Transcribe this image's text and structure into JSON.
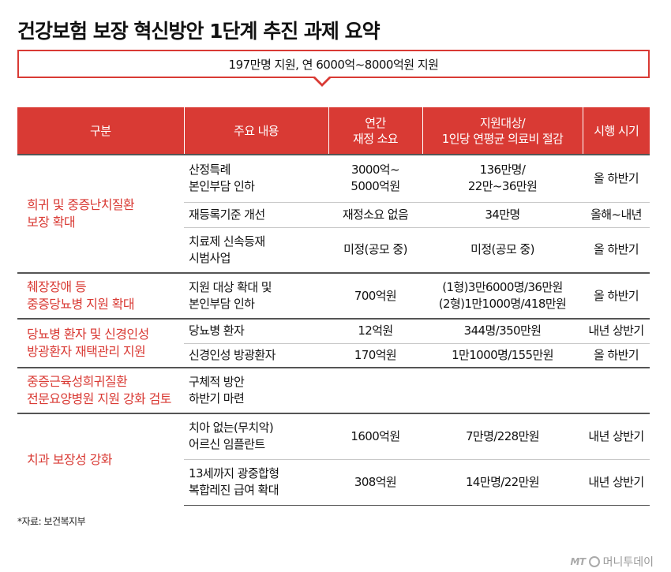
{
  "title": "건강보험 보장 혁신방안 1단계 추진 과제 요약",
  "callout": "197만명 지원, 연 6000억~8000억원 지원",
  "headers": {
    "category": "구분",
    "content": "주요 내용",
    "cost_line1": "연간",
    "cost_line2": "재정 소요",
    "target_line1": "지원대상/",
    "target_line2": "1인당 연평균 의료비 절감",
    "timing": "시행 시기"
  },
  "categories": {
    "rare_disease_line1": "희귀 및 중증난치질환",
    "rare_disease_line2": "보장 확대",
    "disability_line1": "췌장장애 등",
    "disability_line2": "중증당뇨병 지원 확대",
    "diabetes_home_line1": "당뇨병 환자 및 신경인성",
    "diabetes_home_line2": "방광환자 재택관리 지원",
    "neuromuscular_line1": "중증근육성희귀질환",
    "neuromuscular_line2": "전문요양병원 지원 강화 검토",
    "dental": "치과 보장성 강화"
  },
  "rows": [
    {
      "content_line1": "산정특례",
      "content_line2": "본인부담 인하",
      "cost_line1": "3000억~",
      "cost_line2": "5000억원",
      "target_line1": "136만명/",
      "target_line2": "22만~36만원",
      "timing": "올 하반기"
    },
    {
      "content_line1": "재등록기준 개선",
      "cost_line1": "재정소요 없음",
      "target_line1": "34만명",
      "timing": "올해~내년"
    },
    {
      "content_line1": "치료제 신속등재",
      "content_line2": "시범사업",
      "cost_line1": "미정(공모 중)",
      "target_line1": "미정(공모 중)",
      "timing": "올 하반기"
    },
    {
      "content_line1": "지원 대상 확대 및",
      "content_line2": "본인부담 인하",
      "cost_line1": "700억원",
      "target_line1": "(1형)3만6000명/36만원",
      "target_line2": "(2형)1만1000명/418만원",
      "timing": "올 하반기"
    },
    {
      "content_line1": "당뇨병 환자",
      "cost_line1": "12억원",
      "target_line1": "344명/350만원",
      "timing": "내년 상반기"
    },
    {
      "content_line1": "신경인성 방광환자",
      "cost_line1": "170억원",
      "target_line1": "1만1000명/155만원",
      "timing": "올 하반기"
    },
    {
      "content_line1": "구체적 방안",
      "content_line2": "하반기 마련"
    },
    {
      "content_line1": "치아 없는(무치악)",
      "content_line2": "어르신 임플란트",
      "cost_line1": "1600억원",
      "target_line1": "7만명/228만원",
      "timing": "내년 상반기"
    },
    {
      "content_line1": "13세까지 광중합형",
      "content_line2": "복합레진 급여 확대",
      "cost_line1": "308억원",
      "target_line1": "14만명/22만원",
      "timing": "내년 상반기"
    }
  ],
  "source": "*자료: 보건복지부",
  "watermark": {
    "logo": "MT",
    "name": "머니투데이"
  },
  "colors": {
    "accent": "#d93a34",
    "header_text": "#ffffff"
  }
}
